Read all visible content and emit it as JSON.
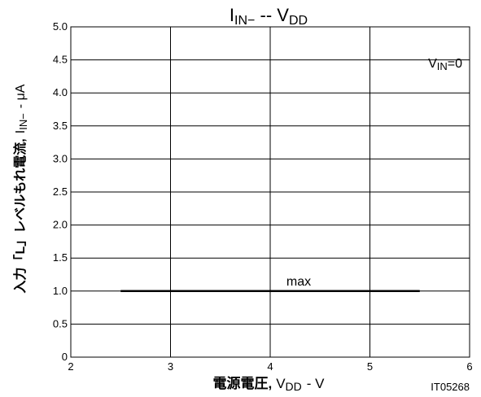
{
  "chart_data": {
    "type": "line",
    "title_main": "I",
    "title_main_sub": "IN−",
    "title_sep": " -- ",
    "title_var": "V",
    "title_var_sub": "DD",
    "condition_main": "V",
    "condition_sub": "IN",
    "condition_rest": "=0",
    "ylabel_jp": "入力「L」レベルもれ電流,",
    "ylabel_sym": "I",
    "ylabel_sub": "IN−",
    "ylabel_unit": "- μA",
    "xlabel_jp": "電源電圧,",
    "xlabel_sym": "V",
    "xlabel_sub": "DD",
    "xlabel_unit": "- V",
    "figure_id": "IT05268",
    "xlim": [
      2,
      6
    ],
    "ylim": [
      0,
      5.0
    ],
    "x_ticks": [
      "2",
      "3",
      "4",
      "5",
      "6"
    ],
    "y_ticks": [
      "0",
      "0.5",
      "1.0",
      "1.5",
      "2.0",
      "2.5",
      "3.0",
      "3.5",
      "4.0",
      "4.5",
      "5.0"
    ],
    "grid": true,
    "series": [
      {
        "name": "max",
        "x": [
          2.5,
          5.5
        ],
        "y": [
          1.0,
          1.0
        ]
      }
    ]
  }
}
